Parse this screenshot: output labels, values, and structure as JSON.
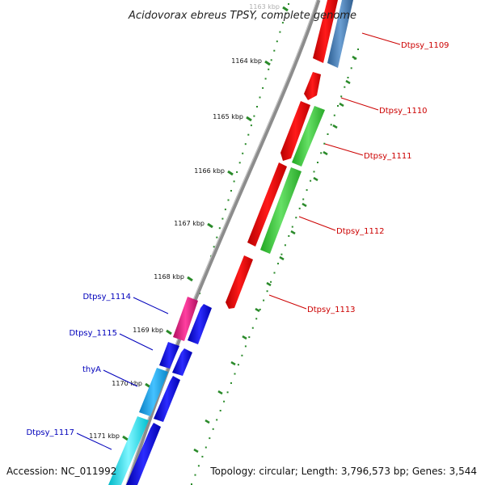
{
  "title": "Acidovorax ebreus TPSY, complete genome",
  "footer": {
    "accession": "Accession: NC_011992",
    "summary": "Topology: circular; Length: 3,796,573 bp; Genes: 3,544"
  },
  "colors": {
    "backbone": "#888888",
    "tick": "#2a8a2a",
    "forward_label": "#cc0000",
    "reverse_label": "#0000bb"
  },
  "kbp_labels": [
    "1163 kbp",
    "1164 kbp",
    "1165 kbp",
    "1166 kbp",
    "1167 kbp",
    "1168 kbp",
    "1169 kbp",
    "1170 kbp",
    "1171 kbp"
  ],
  "gene_labels": [
    {
      "text": "Dtpsy_1109",
      "strand": "forward"
    },
    {
      "text": "Dtpsy_1110",
      "strand": "forward"
    },
    {
      "text": "Dtpsy_1111",
      "strand": "forward"
    },
    {
      "text": "Dtpsy_1112",
      "strand": "forward"
    },
    {
      "text": "Dtpsy_1113",
      "strand": "forward"
    },
    {
      "text": "Dtpsy_1114",
      "strand": "reverse"
    },
    {
      "text": "Dtpsy_1115",
      "strand": "reverse"
    },
    {
      "text": "thyA",
      "strand": "reverse"
    },
    {
      "text": "Dtpsy_1117",
      "strand": "reverse"
    }
  ]
}
